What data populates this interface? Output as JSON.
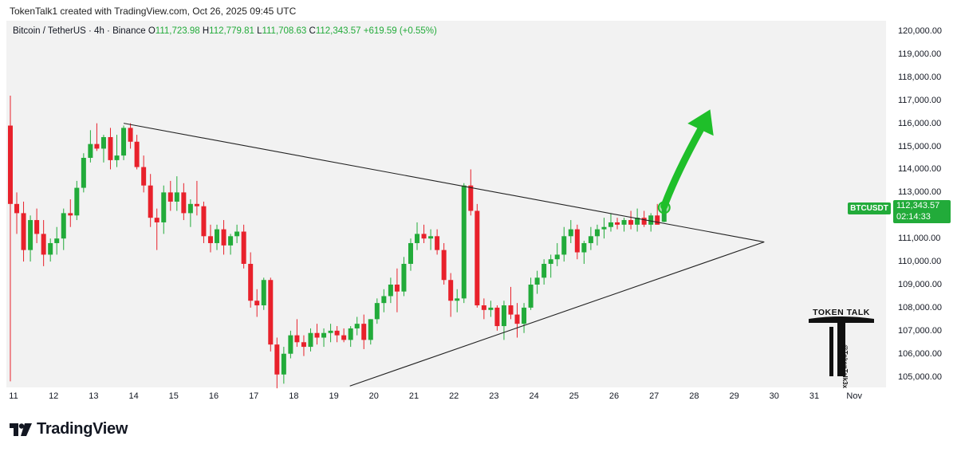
{
  "header": {
    "caption": "TokenTalk1 created with TradingView.com, Oct 26, 2025 09:45 UTC"
  },
  "legend": {
    "symbol": "Bitcoin / TetherUS · 4h · Binance",
    "o_label": "O",
    "o_value": "111,723.98",
    "h_label": "H",
    "h_value": "112,779.81",
    "l_label": "L",
    "l_value": "111,708.63",
    "c_label": "C",
    "c_value": "112,343.57",
    "change": "+619.59 (+0.55%)"
  },
  "price_scale": {
    "ticker": "BTCUSDT",
    "last_price": "112,343.57",
    "countdown": "02:14:33"
  },
  "footer": {
    "brand": "TradingView"
  },
  "watermark": {
    "title": "TOKEN TALK",
    "handle": "@TokenTalk3x"
  },
  "colors": {
    "up": "#22ab3a",
    "down": "#e8212b",
    "arrow": "#1fbf2a",
    "bg": "#f2f2f2"
  },
  "chart_data": {
    "type": "candlestick",
    "interval": "4h",
    "y_ticks": [
      "120,000.00",
      "119,000.00",
      "118,000.00",
      "117,000.00",
      "116,000.00",
      "115,000.00",
      "114,000.00",
      "113,000.00",
      "112,000.00",
      "111,000.00",
      "110,000.00",
      "109,000.00",
      "108,000.00",
      "107,000.00",
      "106,000.00",
      "105,000.00"
    ],
    "y_tick_values": [
      120000,
      119000,
      118000,
      117000,
      116000,
      115000,
      114000,
      113000,
      112000,
      111000,
      110000,
      109000,
      108000,
      107000,
      106000,
      105000
    ],
    "ylim": [
      104600,
      120600
    ],
    "x_ticks": [
      "11",
      "12",
      "13",
      "14",
      "15",
      "16",
      "17",
      "18",
      "19",
      "20",
      "21",
      "22",
      "23",
      "24",
      "25",
      "26",
      "27",
      "28",
      "29",
      "30",
      "31",
      "Nov"
    ],
    "x_tick_days": [
      11,
      12,
      13,
      14,
      15,
      16,
      17,
      18,
      19,
      20,
      21,
      22,
      23,
      24,
      25,
      26,
      27,
      28,
      29,
      30,
      31,
      32
    ],
    "candles": [
      [
        10.92,
        115900,
        117200,
        104800,
        112500
      ],
      [
        11.08,
        112500,
        113000,
        111200,
        112100
      ],
      [
        11.25,
        112100,
        112600,
        110000,
        110500
      ],
      [
        11.42,
        110500,
        112000,
        110000,
        111800
      ],
      [
        11.58,
        111800,
        112300,
        110800,
        111200
      ],
      [
        11.75,
        111200,
        111800,
        109800,
        110300
      ],
      [
        11.92,
        110300,
        111000,
        110000,
        110800
      ],
      [
        12.08,
        110800,
        111500,
        110300,
        111000
      ],
      [
        12.25,
        111000,
        112300,
        110500,
        112100
      ],
      [
        12.42,
        112100,
        112700,
        111500,
        112000
      ],
      [
        12.58,
        112000,
        113500,
        111800,
        113200
      ],
      [
        12.75,
        113200,
        114700,
        113000,
        114500
      ],
      [
        12.92,
        114500,
        115700,
        114300,
        115100
      ],
      [
        13.08,
        115100,
        116000,
        114800,
        114900
      ],
      [
        13.25,
        114900,
        115500,
        114300,
        115400
      ],
      [
        13.42,
        115400,
        115800,
        114000,
        114400
      ],
      [
        13.58,
        114400,
        115500,
        114100,
        114600
      ],
      [
        13.75,
        114600,
        115900,
        114400,
        115800
      ],
      [
        13.92,
        115800,
        116000,
        114900,
        115200
      ],
      [
        14.08,
        115200,
        115500,
        114000,
        114100
      ],
      [
        14.25,
        114100,
        114600,
        113000,
        113300
      ],
      [
        14.42,
        113300,
        113800,
        111500,
        111900
      ],
      [
        14.58,
        111900,
        112300,
        110500,
        111700
      ],
      [
        14.75,
        111700,
        113300,
        111200,
        113000
      ],
      [
        14.92,
        113000,
        113500,
        112200,
        112600
      ],
      [
        15.08,
        112600,
        113700,
        112200,
        113000
      ],
      [
        15.25,
        113000,
        113400,
        111800,
        112100
      ],
      [
        15.42,
        112100,
        112700,
        111500,
        112500
      ],
      [
        15.58,
        112500,
        113500,
        112000,
        112400
      ],
      [
        15.75,
        112400,
        112600,
        110800,
        111100
      ],
      [
        15.92,
        111100,
        111600,
        110400,
        110800
      ],
      [
        16.08,
        110800,
        111600,
        110500,
        111400
      ],
      [
        16.25,
        111400,
        111800,
        110300,
        110700
      ],
      [
        16.42,
        110700,
        111200,
        110300,
        111100
      ],
      [
        16.58,
        111100,
        111600,
        110800,
        111300
      ],
      [
        16.75,
        111300,
        111600,
        109700,
        109900
      ],
      [
        16.92,
        109900,
        110400,
        108000,
        108300
      ],
      [
        17.08,
        108300,
        108800,
        107600,
        108100
      ],
      [
        17.25,
        108100,
        109300,
        107900,
        109200
      ],
      [
        17.42,
        109200,
        109300,
        106100,
        106400
      ],
      [
        17.58,
        106400,
        106700,
        104500,
        105100
      ],
      [
        17.75,
        105100,
        106300,
        104700,
        106000
      ],
      [
        17.92,
        106000,
        107000,
        105800,
        106800
      ],
      [
        18.08,
        106800,
        107500,
        106300,
        106500
      ],
      [
        18.25,
        106500,
        106800,
        105900,
        106300
      ],
      [
        18.42,
        106300,
        107100,
        106100,
        106900
      ],
      [
        18.58,
        106900,
        107300,
        106400,
        106700
      ],
      [
        18.75,
        106700,
        107100,
        106300,
        106900
      ],
      [
        18.92,
        106900,
        107300,
        106500,
        107000
      ],
      [
        19.08,
        107000,
        107200,
        106500,
        106800
      ],
      [
        19.25,
        106800,
        107100,
        106500,
        106600
      ],
      [
        19.42,
        106600,
        107200,
        106300,
        107100
      ],
      [
        19.58,
        107100,
        107600,
        106800,
        107300
      ],
      [
        19.75,
        107300,
        107700,
        106200,
        106600
      ],
      [
        19.92,
        106600,
        107500,
        106400,
        107500
      ],
      [
        20.08,
        107500,
        108400,
        107300,
        108200
      ],
      [
        20.25,
        108200,
        108800,
        107800,
        108500
      ],
      [
        20.42,
        108500,
        109300,
        108200,
        109000
      ],
      [
        20.58,
        109000,
        109700,
        107800,
        108700
      ],
      [
        20.75,
        108700,
        110200,
        108500,
        109900
      ],
      [
        20.92,
        109900,
        111000,
        109600,
        110800
      ],
      [
        21.08,
        110800,
        111700,
        110500,
        111200
      ],
      [
        21.25,
        111200,
        111600,
        110800,
        111000
      ],
      [
        21.42,
        111000,
        111400,
        110500,
        111100
      ],
      [
        21.58,
        111100,
        111400,
        110300,
        110500
      ],
      [
        21.75,
        110500,
        110800,
        109000,
        109200
      ],
      [
        21.92,
        109200,
        109500,
        107600,
        108300
      ],
      [
        22.08,
        108300,
        108800,
        107800,
        108400
      ],
      [
        22.25,
        108400,
        113400,
        108200,
        113300
      ],
      [
        22.42,
        113300,
        114000,
        112000,
        112200
      ],
      [
        22.58,
        112200,
        112500,
        108000,
        108100
      ],
      [
        22.75,
        108100,
        108400,
        107500,
        107900
      ],
      [
        22.92,
        107900,
        108300,
        107600,
        108000
      ],
      [
        23.08,
        108000,
        108100,
        107000,
        107200
      ],
      [
        23.25,
        107200,
        108300,
        106600,
        108100
      ],
      [
        23.42,
        108100,
        108900,
        107500,
        107700
      ],
      [
        23.58,
        107700,
        108200,
        106700,
        107300
      ],
      [
        23.75,
        107300,
        108200,
        106900,
        108000
      ],
      [
        23.92,
        108000,
        109300,
        107900,
        109000
      ],
      [
        24.08,
        109000,
        109600,
        108600,
        109300
      ],
      [
        24.25,
        109300,
        110100,
        109000,
        109900
      ],
      [
        24.42,
        109900,
        110300,
        109300,
        110100
      ],
      [
        24.58,
        110100,
        110800,
        109800,
        110300
      ],
      [
        24.75,
        110300,
        111500,
        110000,
        111100
      ],
      [
        24.92,
        111100,
        111800,
        110800,
        111400
      ],
      [
        25.08,
        111400,
        111600,
        110100,
        110400
      ],
      [
        25.25,
        110400,
        110900,
        109900,
        110800
      ],
      [
        25.42,
        110800,
        111500,
        110500,
        111100
      ],
      [
        25.58,
        111100,
        111600,
        110700,
        111400
      ],
      [
        25.75,
        111400,
        111900,
        111000,
        111500
      ],
      [
        25.92,
        111500,
        112100,
        111300,
        111700
      ],
      [
        26.08,
        111700,
        111900,
        111400,
        111600
      ],
      [
        26.25,
        111600,
        111900,
        111300,
        111800
      ],
      [
        26.42,
        111800,
        112200,
        111400,
        111600
      ],
      [
        26.58,
        111600,
        112300,
        111300,
        111900
      ],
      [
        26.75,
        111900,
        112200,
        111500,
        111600
      ],
      [
        26.92,
        111600,
        112100,
        111300,
        112000
      ],
      [
        27.08,
        112000,
        112500,
        111700,
        111600
      ],
      [
        27.25,
        111723.98,
        112779.81,
        111708.63,
        112343.57
      ]
    ],
    "trendlines": [
      {
        "from": [
          13.75,
          116000
        ],
        "to": [
          29.75,
          110850
        ]
      },
      {
        "from": [
          19.4,
          104600
        ],
        "to": [
          29.75,
          110850
        ]
      }
    ],
    "marker": {
      "x": 27.25,
      "y": 112343.57
    },
    "projection_arrow": {
      "from": [
        27.25,
        112400
      ],
      "to": [
        28.4,
        116600
      ]
    }
  }
}
